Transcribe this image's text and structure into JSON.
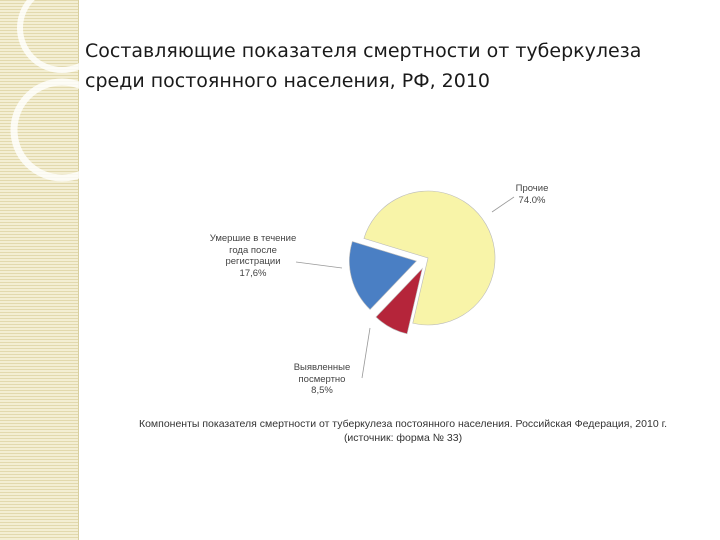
{
  "title": "Составляющие показателя смертности от туберкулеза среди постоянного населения, РФ, 2010",
  "chart_data": {
    "type": "pie",
    "categories": [
      "Умершие в течение года после регистрации",
      "Выявленные посмертно",
      "Прочие"
    ],
    "values": [
      17.6,
      8.5,
      74.0
    ],
    "value_labels": [
      "17,6%",
      "8,5%",
      "74.0%"
    ],
    "colors": [
      "#4a7fc4",
      "#b5253a",
      "#f8f4a8"
    ],
    "caption": [
      "Компоненты показателя смертности от туберкулеза постоянного населения. Российская Федерация, 2010 г.",
      "(источник: форма № 33)"
    ]
  }
}
